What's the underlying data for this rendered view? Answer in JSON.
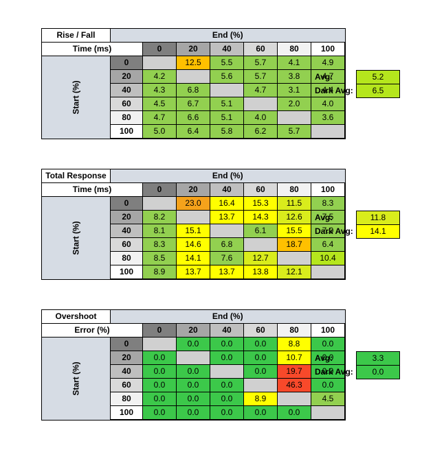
{
  "tables": [
    {
      "title_line1": "Rise / Fall",
      "title_line2": "Time (ms)",
      "end_label": "End (%)",
      "start_label": "Start (%)",
      "columns": [
        "0",
        "20",
        "40",
        "60",
        "80",
        "100"
      ],
      "rows": [
        {
          "start": "0",
          "values": [
            "",
            "12.5",
            "5.5",
            "5.7",
            "4.1",
            "4.9"
          ],
          "colors": [
            "#d0d0d0",
            "#ffc000",
            "#92d050",
            "#92d050",
            "#92d050",
            "#92d050"
          ]
        },
        {
          "start": "20",
          "values": [
            "4.2",
            "",
            "5.6",
            "5.7",
            "3.8",
            "4.7"
          ],
          "colors": [
            "#92d050",
            "#d0d0d0",
            "#92d050",
            "#92d050",
            "#92d050",
            "#92d050"
          ]
        },
        {
          "start": "40",
          "values": [
            "4.3",
            "6.8",
            "",
            "4.7",
            "3.1",
            "4.4"
          ],
          "colors": [
            "#92d050",
            "#92d050",
            "#d0d0d0",
            "#92d050",
            "#92d050",
            "#92d050"
          ]
        },
        {
          "start": "60",
          "values": [
            "4.5",
            "6.7",
            "5.1",
            "",
            "2.0",
            "4.0"
          ],
          "colors": [
            "#92d050",
            "#92d050",
            "#92d050",
            "#d0d0d0",
            "#92d050",
            "#92d050"
          ]
        },
        {
          "start": "80",
          "values": [
            "4.7",
            "6.6",
            "5.1",
            "4.0",
            "",
            "3.6"
          ],
          "colors": [
            "#92d050",
            "#92d050",
            "#92d050",
            "#92d050",
            "#d0d0d0",
            "#92d050"
          ]
        },
        {
          "start": "100",
          "values": [
            "5.0",
            "6.4",
            "5.8",
            "6.2",
            "5.7",
            ""
          ],
          "colors": [
            "#92d050",
            "#92d050",
            "#92d050",
            "#92d050",
            "#92d050",
            "#d0d0d0"
          ]
        }
      ],
      "avg_label": "Avg:",
      "avg_value": "5.2",
      "avg_color": "#b5e61d",
      "dark_avg_label": "Dark Avg:",
      "dark_avg_value": "6.5",
      "dark_avg_color": "#b5e61d"
    },
    {
      "title_line1": "Total Response",
      "title_line2": "Time (ms)",
      "end_label": "End (%)",
      "start_label": "Start (%)",
      "columns": [
        "0",
        "20",
        "40",
        "60",
        "80",
        "100"
      ],
      "rows": [
        {
          "start": "0",
          "values": [
            "",
            "23.0",
            "16.4",
            "15.3",
            "11.5",
            "8.3"
          ],
          "colors": [
            "#d0d0d0",
            "#f5a21b",
            "#ffff00",
            "#ffff00",
            "#d9ec1c",
            "#92d050"
          ]
        },
        {
          "start": "20",
          "values": [
            "8.2",
            "",
            "13.7",
            "14.3",
            "12.6",
            "7.5"
          ],
          "colors": [
            "#92d050",
            "#d0d0d0",
            "#ffff00",
            "#ffff00",
            "#d9ec1c",
            "#92d050"
          ]
        },
        {
          "start": "40",
          "values": [
            "8.1",
            "15.1",
            "",
            "6.1",
            "15.5",
            "7.0"
          ],
          "colors": [
            "#92d050",
            "#ffff00",
            "#d0d0d0",
            "#92d050",
            "#ffff00",
            "#92d050"
          ]
        },
        {
          "start": "60",
          "values": [
            "8.3",
            "14.6",
            "6.8",
            "",
            "18.7",
            "6.4"
          ],
          "colors": [
            "#92d050",
            "#ffff00",
            "#92d050",
            "#d0d0d0",
            "#ffc000",
            "#92d050"
          ]
        },
        {
          "start": "80",
          "values": [
            "8.5",
            "14.1",
            "7.6",
            "12.7",
            "",
            "10.4"
          ],
          "colors": [
            "#92d050",
            "#ffff00",
            "#92d050",
            "#d9ec1c",
            "#d0d0d0",
            "#b5e61d"
          ]
        },
        {
          "start": "100",
          "values": [
            "8.9",
            "13.7",
            "13.7",
            "13.8",
            "12.1",
            ""
          ],
          "colors": [
            "#92d050",
            "#ffff00",
            "#ffff00",
            "#ffff00",
            "#d9ec1c",
            "#d0d0d0"
          ]
        }
      ],
      "avg_label": "Avg:",
      "avg_value": "11.8",
      "avg_color": "#d9ec1c",
      "dark_avg_label": "Dark Avg:",
      "dark_avg_value": "14.1",
      "dark_avg_color": "#ffff00"
    },
    {
      "title_line1": "Overshoot",
      "title_line2": "Error (%)",
      "end_label": "End (%)",
      "start_label": "Start (%)",
      "columns": [
        "0",
        "20",
        "40",
        "60",
        "80",
        "100"
      ],
      "rows": [
        {
          "start": "0",
          "values": [
            "",
            "0.0",
            "0.0",
            "0.0",
            "8.8",
            "0.0"
          ],
          "colors": [
            "#d0d0d0",
            "#3cc84a",
            "#3cc84a",
            "#3cc84a",
            "#ffff00",
            "#3cc84a"
          ]
        },
        {
          "start": "20",
          "values": [
            "0.0",
            "",
            "0.0",
            "0.0",
            "10.7",
            "0.0"
          ],
          "colors": [
            "#3cc84a",
            "#d0d0d0",
            "#3cc84a",
            "#3cc84a",
            "#ffff00",
            "#3cc84a"
          ]
        },
        {
          "start": "40",
          "values": [
            "0.0",
            "0.0",
            "",
            "0.0",
            "19.7",
            "0.0"
          ],
          "colors": [
            "#3cc84a",
            "#3cc84a",
            "#d0d0d0",
            "#3cc84a",
            "#f8492a",
            "#3cc84a"
          ]
        },
        {
          "start": "60",
          "values": [
            "0.0",
            "0.0",
            "0.0",
            "",
            "46.3",
            "0.0"
          ],
          "colors": [
            "#3cc84a",
            "#3cc84a",
            "#3cc84a",
            "#d0d0d0",
            "#f8492a",
            "#3cc84a"
          ]
        },
        {
          "start": "80",
          "values": [
            "0.0",
            "0.0",
            "0.0",
            "8.9",
            "",
            "4.5"
          ],
          "colors": [
            "#3cc84a",
            "#3cc84a",
            "#3cc84a",
            "#ffff00",
            "#d0d0d0",
            "#92d050"
          ]
        },
        {
          "start": "100",
          "values": [
            "0.0",
            "0.0",
            "0.0",
            "0.0",
            "0.0",
            ""
          ],
          "colors": [
            "#3cc84a",
            "#3cc84a",
            "#3cc84a",
            "#3cc84a",
            "#3cc84a",
            "#d0d0d0"
          ]
        }
      ],
      "avg_label": "Avg:",
      "avg_value": "3.3",
      "avg_color": "#3cc84a",
      "dark_avg_label": "Dark Avg:",
      "dark_avg_value": "0.0",
      "dark_avg_color": "#3cc84a"
    }
  ],
  "chart_data": [
    {
      "type": "heatmap",
      "title": "Rise / Fall Time (ms)",
      "xlabel": "End (%)",
      "ylabel": "Start (%)",
      "x": [
        0,
        20,
        40,
        60,
        80,
        100
      ],
      "y": [
        0,
        20,
        40,
        60,
        80,
        100
      ],
      "values": [
        [
          null,
          12.5,
          5.5,
          5.7,
          4.1,
          4.9
        ],
        [
          4.2,
          null,
          5.6,
          5.7,
          3.8,
          4.7
        ],
        [
          4.3,
          6.8,
          null,
          4.7,
          3.1,
          4.4
        ],
        [
          4.5,
          6.7,
          5.1,
          null,
          2.0,
          4.0
        ],
        [
          4.7,
          6.6,
          5.1,
          4.0,
          null,
          3.6
        ],
        [
          5.0,
          6.4,
          5.8,
          6.2,
          5.7,
          null
        ]
      ],
      "avg": 5.2,
      "dark_avg": 6.5
    },
    {
      "type": "heatmap",
      "title": "Total Response Time (ms)",
      "xlabel": "End (%)",
      "ylabel": "Start (%)",
      "x": [
        0,
        20,
        40,
        60,
        80,
        100
      ],
      "y": [
        0,
        20,
        40,
        60,
        80,
        100
      ],
      "values": [
        [
          null,
          23.0,
          16.4,
          15.3,
          11.5,
          8.3
        ],
        [
          8.2,
          null,
          13.7,
          14.3,
          12.6,
          7.5
        ],
        [
          8.1,
          15.1,
          null,
          6.1,
          15.5,
          7.0
        ],
        [
          8.3,
          14.6,
          6.8,
          null,
          18.7,
          6.4
        ],
        [
          8.5,
          14.1,
          7.6,
          12.7,
          null,
          10.4
        ],
        [
          8.9,
          13.7,
          13.7,
          13.8,
          12.1,
          null
        ]
      ],
      "avg": 11.8,
      "dark_avg": 14.1
    },
    {
      "type": "heatmap",
      "title": "Overshoot Error (%)",
      "xlabel": "End (%)",
      "ylabel": "Start (%)",
      "x": [
        0,
        20,
        40,
        60,
        80,
        100
      ],
      "y": [
        0,
        20,
        40,
        60,
        80,
        100
      ],
      "values": [
        [
          null,
          0.0,
          0.0,
          0.0,
          8.8,
          0.0
        ],
        [
          0.0,
          null,
          0.0,
          0.0,
          10.7,
          0.0
        ],
        [
          0.0,
          0.0,
          null,
          0.0,
          19.7,
          0.0
        ],
        [
          0.0,
          0.0,
          0.0,
          null,
          46.3,
          0.0
        ],
        [
          0.0,
          0.0,
          0.0,
          8.9,
          null,
          4.5
        ],
        [
          0.0,
          0.0,
          0.0,
          0.0,
          0.0,
          null
        ]
      ],
      "avg": 3.3,
      "dark_avg": 0.0
    }
  ]
}
